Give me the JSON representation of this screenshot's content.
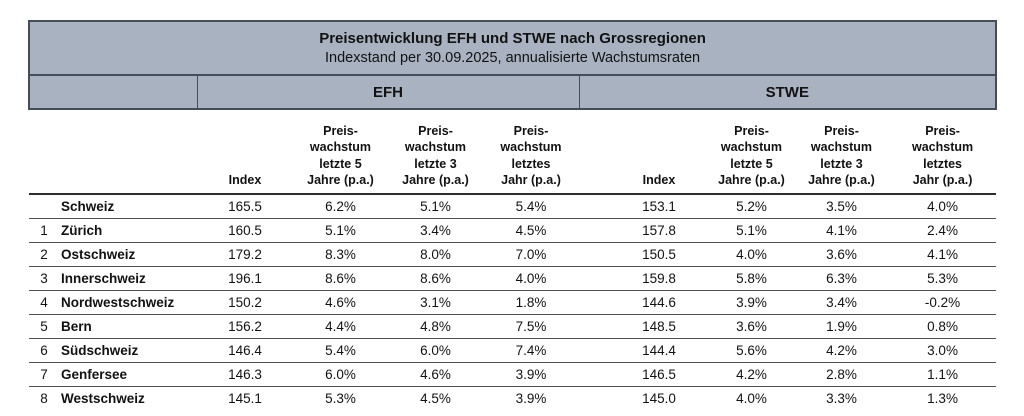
{
  "colors": {
    "header_bg": "#a9b2c1",
    "border_dark": "#474d58",
    "row_line": "#4f4f4f"
  },
  "chart_data": {
    "type": "table",
    "title": "Preisentwicklung EFH und STWE nach Grossregionen",
    "subtitle": "Indexstand per 30.09.2025, annualisierte Wachstumsraten",
    "groups": [
      "EFH",
      "STWE"
    ],
    "column_headers": {
      "index": "Index",
      "growth_5y": "Preis-\nwachstum\nletzte 5\nJahre (p.a.)",
      "growth_3y": "Preis-\nwachstum\nletzte 3\nJahre (p.a.)",
      "growth_1y": "Preis-\nwachstum\nletztes\nJahr (p.a.)"
    },
    "rows": [
      {
        "num": "",
        "region": "Schweiz",
        "efh": [
          "165.5",
          "6.2%",
          "5.1%",
          "5.4%"
        ],
        "stwe": [
          "153.1",
          "5.2%",
          "3.5%",
          "4.0%"
        ]
      },
      {
        "num": "1",
        "region": "Zürich",
        "efh": [
          "160.5",
          "5.1%",
          "3.4%",
          "4.5%"
        ],
        "stwe": [
          "157.8",
          "5.1%",
          "4.1%",
          "2.4%"
        ]
      },
      {
        "num": "2",
        "region": "Ostschweiz",
        "efh": [
          "179.2",
          "8.3%",
          "8.0%",
          "7.0%"
        ],
        "stwe": [
          "150.5",
          "4.0%",
          "3.6%",
          "4.1%"
        ]
      },
      {
        "num": "3",
        "region": "Innerschweiz",
        "efh": [
          "196.1",
          "8.6%",
          "8.6%",
          "4.0%"
        ],
        "stwe": [
          "159.8",
          "5.8%",
          "6.3%",
          "5.3%"
        ]
      },
      {
        "num": "4",
        "region": "Nordwestschweiz",
        "efh": [
          "150.2",
          "4.6%",
          "3.1%",
          "1.8%"
        ],
        "stwe": [
          "144.6",
          "3.9%",
          "3.4%",
          "-0.2%"
        ]
      },
      {
        "num": "5",
        "region": "Bern",
        "efh": [
          "156.2",
          "4.4%",
          "4.8%",
          "7.5%"
        ],
        "stwe": [
          "148.5",
          "3.6%",
          "1.9%",
          "0.8%"
        ]
      },
      {
        "num": "6",
        "region": "Südschweiz",
        "efh": [
          "146.4",
          "5.4%",
          "6.0%",
          "7.4%"
        ],
        "stwe": [
          "144.4",
          "5.6%",
          "4.2%",
          "3.0%"
        ]
      },
      {
        "num": "7",
        "region": "Genfersee",
        "efh": [
          "146.3",
          "6.0%",
          "4.6%",
          "3.9%"
        ],
        "stwe": [
          "146.5",
          "4.2%",
          "2.8%",
          "1.1%"
        ]
      },
      {
        "num": "8",
        "region": "Westschweiz",
        "efh": [
          "145.1",
          "5.3%",
          "4.5%",
          "3.9%"
        ],
        "stwe": [
          "145.0",
          "4.0%",
          "3.3%",
          "1.3%"
        ]
      }
    ]
  }
}
